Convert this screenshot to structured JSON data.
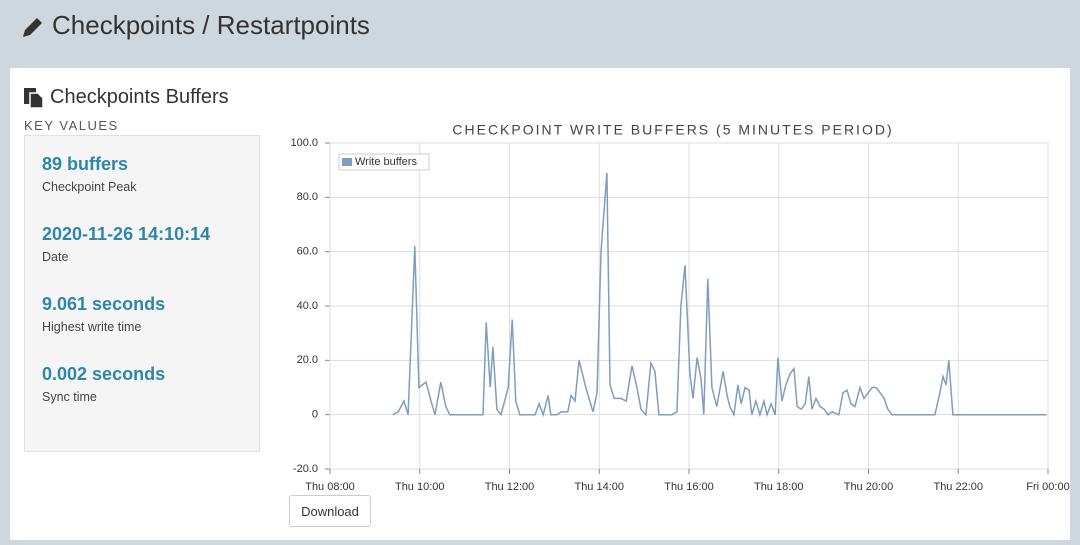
{
  "header": {
    "title": "Checkpoints / Restartpoints"
  },
  "panel": {
    "title": "Checkpoints Buffers",
    "section_label": "KEY VALUES",
    "key_values": [
      {
        "value": "89 buffers",
        "label": "Checkpoint Peak"
      },
      {
        "value": "2020-11-26 14:10:14",
        "label": "Date"
      },
      {
        "value": "9.061 seconds",
        "label": "Highest write time"
      },
      {
        "value": "0.002 seconds",
        "label": "Sync time"
      }
    ],
    "button": "Download"
  },
  "chart_data": {
    "type": "line",
    "title": "CHECKPOINT WRITE BUFFERS (5 MINUTES PERIOD)",
    "x": [
      9.4,
      9.52,
      9.65,
      9.74,
      9.89,
      9.98,
      10.14,
      10.25,
      10.34,
      10.47,
      10.58,
      10.67,
      11.41,
      11.48,
      11.57,
      11.63,
      11.72,
      11.81,
      11.97,
      12.06,
      12.14,
      12.23,
      12.57,
      12.66,
      12.75,
      12.86,
      12.92,
      13.06,
      13.15,
      13.3,
      13.37,
      13.46,
      13.55,
      13.7,
      13.86,
      13.95,
      14.04,
      14.17,
      14.24,
      14.33,
      14.48,
      14.6,
      14.73,
      14.84,
      14.93,
      15.04,
      15.15,
      15.24,
      15.33,
      15.49,
      15.62,
      15.73,
      15.82,
      15.91,
      16.02,
      16.09,
      16.18,
      16.27,
      16.33,
      16.42,
      16.51,
      16.62,
      16.76,
      16.85,
      16.91,
      17.0,
      17.09,
      17.16,
      17.25,
      17.34,
      17.4,
      17.49,
      17.58,
      17.67,
      17.74,
      17.83,
      17.92,
      17.98,
      18.07,
      18.16,
      18.25,
      18.34,
      18.41,
      18.5,
      18.59,
      18.67,
      18.74,
      18.83,
      18.92,
      19.01,
      19.1,
      19.19,
      19.34,
      19.43,
      19.52,
      19.61,
      19.7,
      19.81,
      19.9,
      19.99,
      20.08,
      20.17,
      20.26,
      20.35,
      20.43,
      20.52,
      21.48,
      21.59,
      21.66,
      21.73,
      21.79,
      21.88,
      23.96
    ],
    "series": [
      {
        "name": "Write buffers",
        "color": "#7f9dbf",
        "values": [
          0,
          1,
          5,
          0,
          62,
          10,
          12,
          5,
          0,
          12,
          3,
          0,
          0,
          34,
          10,
          25,
          2,
          0,
          10,
          35,
          5,
          0,
          0,
          4,
          0,
          7,
          0,
          0,
          1,
          1,
          7,
          5,
          20,
          10,
          1,
          8,
          60,
          89,
          11,
          6,
          6,
          5,
          18,
          10,
          2,
          0,
          19,
          16,
          0,
          0,
          0,
          1,
          40,
          55,
          15,
          6,
          21,
          13,
          0,
          50,
          10,
          3,
          16,
          7,
          3,
          0,
          11,
          4,
          10,
          9,
          0,
          5,
          0,
          5,
          0,
          4,
          0,
          21,
          5,
          11,
          15,
          17,
          3,
          2,
          4,
          14,
          2,
          6,
          3,
          2,
          0,
          1,
          0,
          8,
          9,
          4,
          3,
          10,
          6,
          8,
          10,
          10,
          8,
          6,
          2,
          0,
          0,
          8,
          14,
          11,
          20,
          0,
          0
        ]
      }
    ],
    "xlim": [
      8,
      24
    ],
    "xticks": [
      {
        "value": 8,
        "label": "Thu 08:00"
      },
      {
        "value": 10,
        "label": "Thu 10:00"
      },
      {
        "value": 12,
        "label": "Thu 12:00"
      },
      {
        "value": 14,
        "label": "Thu 14:00"
      },
      {
        "value": 16,
        "label": "Thu 16:00"
      },
      {
        "value": 18,
        "label": "Thu 18:00"
      },
      {
        "value": 20,
        "label": "Thu 20:00"
      },
      {
        "value": 22,
        "label": "Thu 22:00"
      },
      {
        "value": 24,
        "label": "Fri 00:00"
      }
    ],
    "ylim": [
      -20,
      100
    ],
    "yticks": [
      {
        "value": -20,
        "label": "-20.0"
      },
      0,
      {
        "value": 20,
        "label": "20.0"
      },
      {
        "value": 40,
        "label": "40.0"
      },
      {
        "value": 60,
        "label": "60.0"
      },
      {
        "value": 80,
        "label": "80.0"
      },
      {
        "value": 100,
        "label": "100.0"
      }
    ],
    "grid": true,
    "legend": "top-left"
  }
}
